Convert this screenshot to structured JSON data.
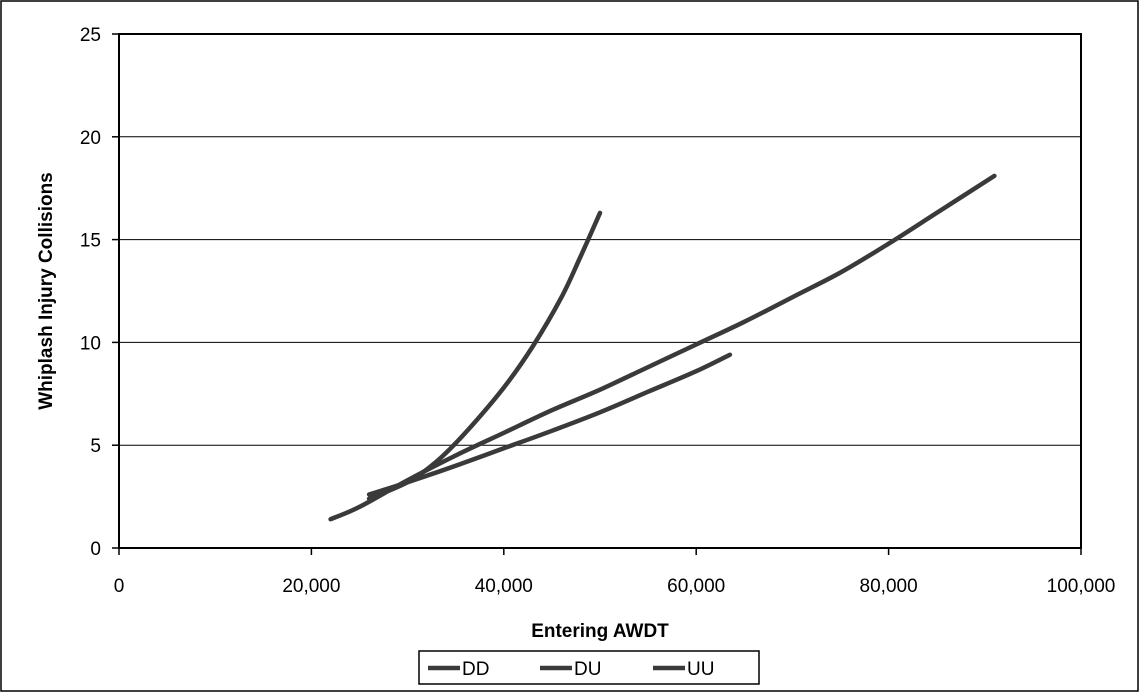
{
  "chart_data": {
    "type": "line",
    "title": "",
    "xlabel": "Entering AWDT",
    "ylabel": "Whiplash Injury Collisions",
    "xlim": [
      0,
      100000
    ],
    "ylim": [
      0,
      25
    ],
    "x_ticks": [
      0,
      20000,
      40000,
      60000,
      80000,
      100000
    ],
    "x_tick_labels": [
      "0",
      "20,000",
      "40,000",
      "60,000",
      "80,000",
      "100,000"
    ],
    "y_ticks": [
      0,
      5,
      10,
      15,
      20,
      25
    ],
    "y_tick_labels": [
      "0",
      "5",
      "10",
      "15",
      "20",
      "25"
    ],
    "grid": "horizontal",
    "legend_position": "bottom",
    "series": [
      {
        "name": "DD",
        "x": [
          26000,
          30000,
          35000,
          40000,
          45000,
          50000,
          55000,
          60000,
          63500
        ],
        "y": [
          2.6,
          3.2,
          4.0,
          4.85,
          5.7,
          6.6,
          7.6,
          8.6,
          9.4
        ]
      },
      {
        "name": "DU",
        "x": [
          22000,
          25000,
          30000,
          35000,
          40000,
          45000,
          50000,
          55000,
          60000,
          65000,
          70000,
          75000,
          80000,
          85000,
          91000
        ],
        "y": [
          1.4,
          2.0,
          3.3,
          4.5,
          5.6,
          6.7,
          7.7,
          8.8,
          9.9,
          11.0,
          12.2,
          13.4,
          14.8,
          16.3,
          18.1
        ]
      },
      {
        "name": "UU",
        "x": [
          26000,
          30000,
          33000,
          36000,
          40000,
          43000,
          46000,
          48000,
          50000
        ],
        "y": [
          2.4,
          3.2,
          4.2,
          5.6,
          7.8,
          9.8,
          12.2,
          14.2,
          16.3
        ]
      }
    ],
    "colors": {
      "line": "#3a3a3a",
      "grid": "#000000",
      "axis": "#000000"
    }
  }
}
